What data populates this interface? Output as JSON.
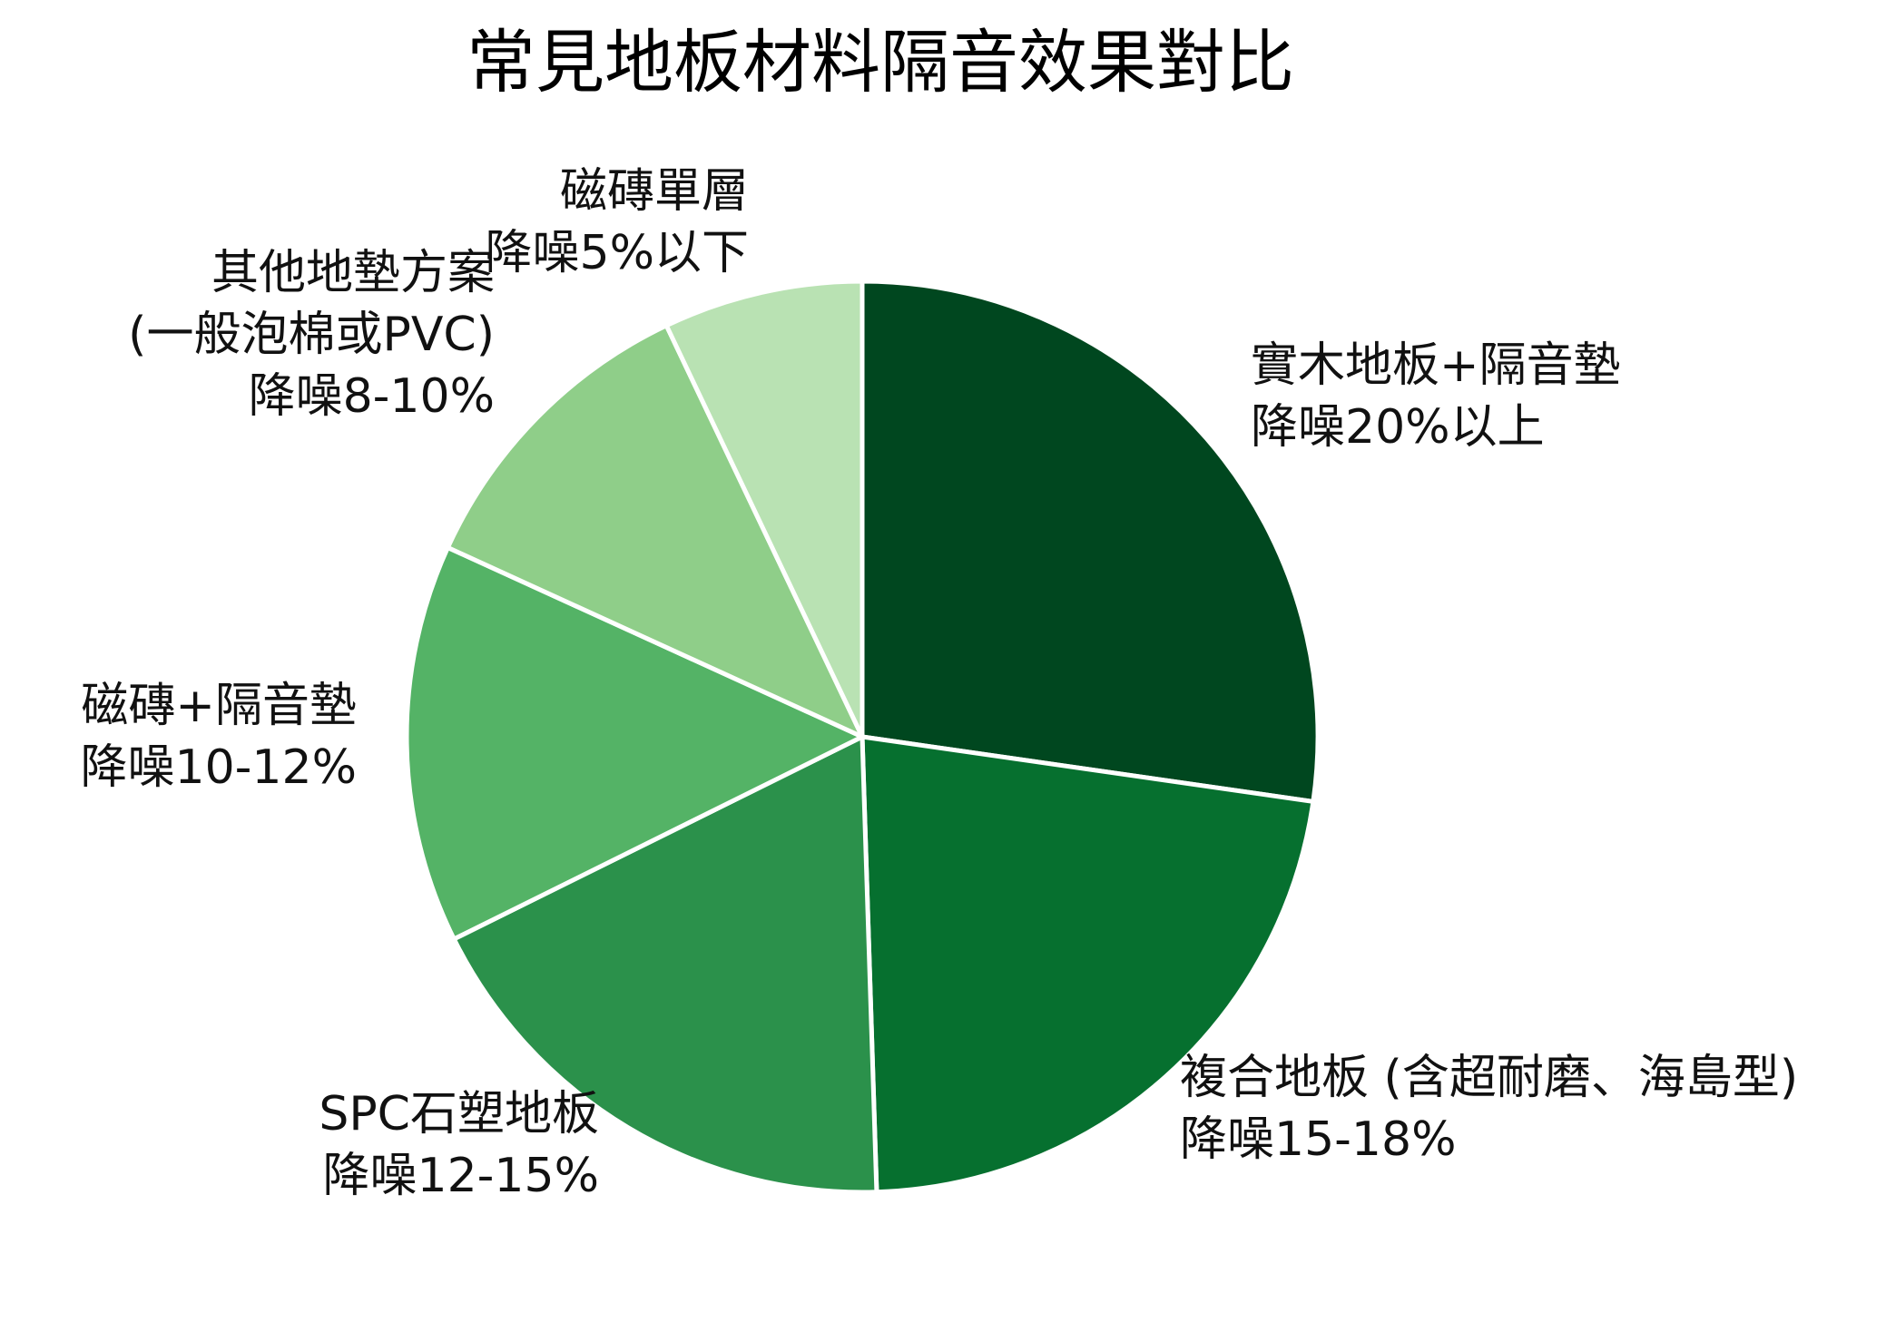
{
  "chart_data": {
    "type": "pie",
    "title": "常見地板材料隔音效果對比",
    "start_angle_deg": 90,
    "direction": "clockwise",
    "values": [
      27,
      22,
      18,
      14,
      11,
      7
    ],
    "slices": [
      {
        "name": "實木地板+隔音墊",
        "label": "降噪20%以上",
        "color": "#00471f"
      },
      {
        "name": "複合地板 (含超耐磨、海島型)",
        "label": "降噪15-18%",
        "color": "#06702f"
      },
      {
        "name": "SPC石塑地板",
        "label": "降噪12-15%",
        "color": "#2b914b"
      },
      {
        "name": "磁磚+隔音墊",
        "label": "降噪10-12%",
        "color": "#54b366"
      },
      {
        "name": "其他地墊方案 (一般泡棉或PVC)",
        "label": "降噪8-10%",
        "color": "#8fce89"
      },
      {
        "name": "磁磚單層",
        "label": "降噪5%以下",
        "color": "#b9e2b3"
      }
    ],
    "slice_border_color": "#ffffff",
    "legend": "none"
  }
}
